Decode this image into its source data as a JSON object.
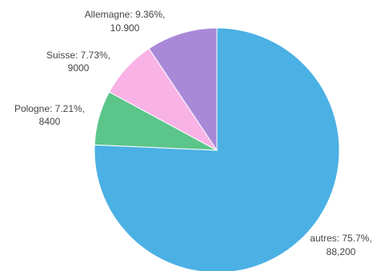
{
  "chart_data": {
    "type": "pie",
    "start_angle_deg": 0,
    "direction": "clockwise",
    "slices": [
      {
        "label": "autres",
        "percent": 75.7,
        "value": 88200,
        "line1": "autres: 75.7%,",
        "line2": "88,200",
        "color": "#4bb0e4"
      },
      {
        "label": "Pologne",
        "percent": 7.21,
        "value": 8400,
        "line1": "Pologne: 7.21%,",
        "line2": "8400",
        "color": "#5cc58a"
      },
      {
        "label": "Suisse",
        "percent": 7.73,
        "value": 9000,
        "line1": "Suisse: 7.73%,",
        "line2": "9000",
        "color": "#f8b2e6"
      },
      {
        "label": "Allemagne",
        "percent": 9.36,
        "value": 10900,
        "line1": "Allemagne: 9.36%,",
        "line2": "10.900",
        "color": "#aa88d8"
      }
    ]
  }
}
